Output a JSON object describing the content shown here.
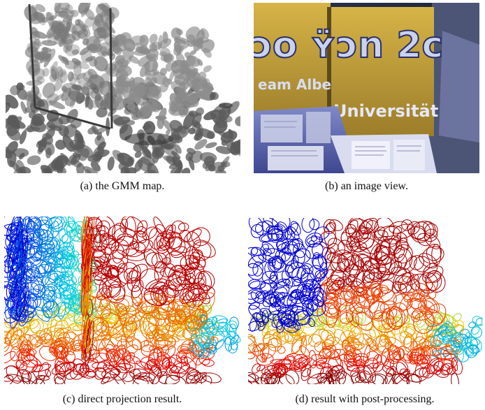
{
  "figure": {
    "subfigures": [
      {
        "id": "a",
        "caption": "(a) the GMM map."
      },
      {
        "id": "b",
        "caption": "(b) an image view."
      },
      {
        "id": "c",
        "caption": "(c) direct projection result."
      },
      {
        "id": "d",
        "caption": "(d) result with post-processing."
      }
    ],
    "image_b_text": {
      "banner_top": "ɔo ʏ̈ɔn 2c",
      "team": "eam Albe",
      "university": "Universität"
    },
    "colors": {
      "gmm_gray": "#6e6e6e",
      "scene_bg": "#1d2437",
      "banner_yellow": "#c8a636",
      "jet_blue": "#1f3a9a",
      "jet_red": "#d8202a"
    }
  }
}
